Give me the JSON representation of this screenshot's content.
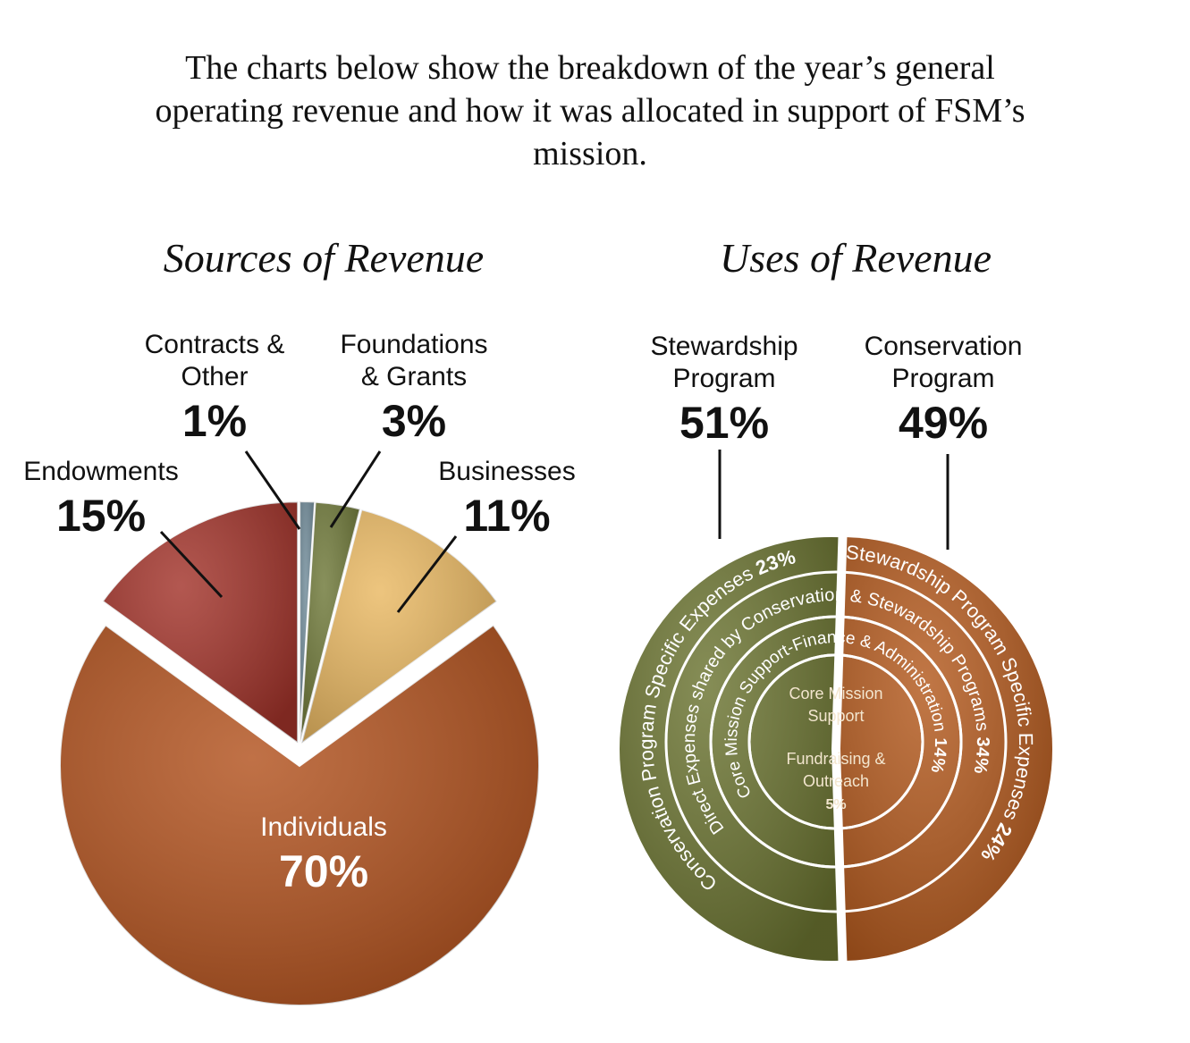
{
  "intro": "The charts below show the breakdown of the year’s general operating revenue and how it was allocated in support of FSM’s mission.",
  "chart_data": [
    {
      "type": "pie",
      "title": "Sources of Revenue",
      "categories": [
        "Contracts & Other",
        "Foundations & Grants",
        "Businesses",
        "Individuals",
        "Endowments"
      ],
      "values": [
        1,
        3,
        11,
        70,
        15
      ],
      "value_labels": [
        "1%",
        "3%",
        "11%",
        "70%",
        "15%"
      ],
      "colors": [
        "#6f8a98",
        "#6e7838",
        "#e9b862",
        "#b2521e",
        "#a2332a"
      ]
    },
    {
      "type": "rings",
      "title": "Uses of Revenue",
      "categories": [
        "Stewardship Program",
        "Conservation Program"
      ],
      "values": [
        51,
        49
      ],
      "value_labels": [
        "51%",
        "49%"
      ],
      "colors": [
        "#6b7431",
        "#b3591d"
      ],
      "rings": {
        "center_title": "Core Mission Support",
        "categories": [
          "Conservation Program Specific Expenses",
          "Stewardship Program Specific Expenses",
          "Direct Expenses shared by Conservation & Stewardship Programs",
          "Core Mission Support-Finance & Administration",
          "Fundraising & Outreach"
        ],
        "values": [
          23,
          24,
          34,
          14,
          5
        ],
        "value_labels": [
          "23%",
          "24%",
          "34%",
          "14%",
          "5%"
        ]
      }
    }
  ]
}
